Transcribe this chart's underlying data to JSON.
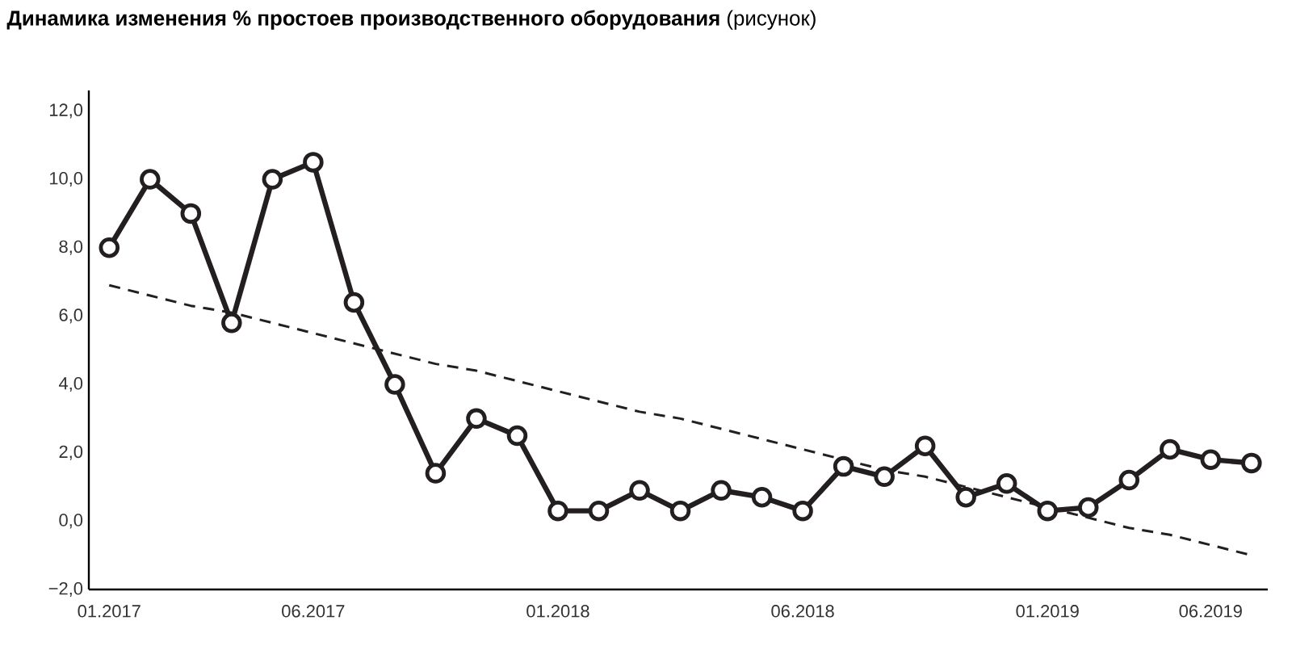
{
  "chart_data": {
    "type": "line",
    "title": "**Динамика изменения % простоев производственного оборудования** (рисунок)",
    "categories": [
      "01.2017",
      null,
      null,
      null,
      null,
      "06.2017",
      null,
      null,
      null,
      null,
      null,
      "01.2018",
      null,
      null,
      null,
      null,
      null,
      "06.2018",
      null,
      null,
      null,
      null,
      null,
      "01.2019",
      null,
      null,
      null,
      "06.2019",
      null
    ],
    "series": [
      {
        "color": "#231f20",
        "marker": "circle",
        "line_style": "solid",
        "values": [
          8.0,
          10.0,
          9.0,
          5.8,
          10.0,
          10.5,
          6.4,
          4.0,
          1.4,
          3.0,
          2.5,
          0.3,
          0.3,
          0.9,
          0.3,
          0.9,
          0.7,
          0.3,
          1.6,
          1.3,
          2.2,
          0.7,
          1.1,
          0.3,
          0.4,
          1.2,
          2.1,
          1.8,
          1.7
        ]
      },
      {
        "color": "#231f20",
        "marker": "none",
        "line_style": "dashed",
        "values": [
          6.9,
          6.6,
          6.3,
          6.1,
          5.8,
          5.5,
          5.2,
          4.9,
          4.6,
          4.4,
          4.1,
          3.8,
          3.5,
          3.2,
          3.0,
          2.7,
          2.4,
          2.1,
          1.8,
          1.5,
          1.3,
          1.0,
          0.7,
          0.4,
          0.1,
          -0.2,
          -0.4,
          -0.7,
          -1.0
        ]
      }
    ],
    "ylim": [
      -2,
      12.6
    ],
    "yticks": [
      {
        "value": -2,
        "label": "−2,0"
      },
      {
        "value": 0,
        "label": "0,0"
      },
      {
        "value": 2,
        "label": "2,0"
      },
      {
        "value": 4,
        "label": "4,0"
      },
      {
        "value": 6,
        "label": "6,0"
      },
      {
        "value": 8,
        "label": "8,0"
      },
      {
        "value": 10,
        "label": "10,0"
      },
      {
        "value": 12,
        "label": "12,0"
      }
    ],
    "grid": false
  }
}
